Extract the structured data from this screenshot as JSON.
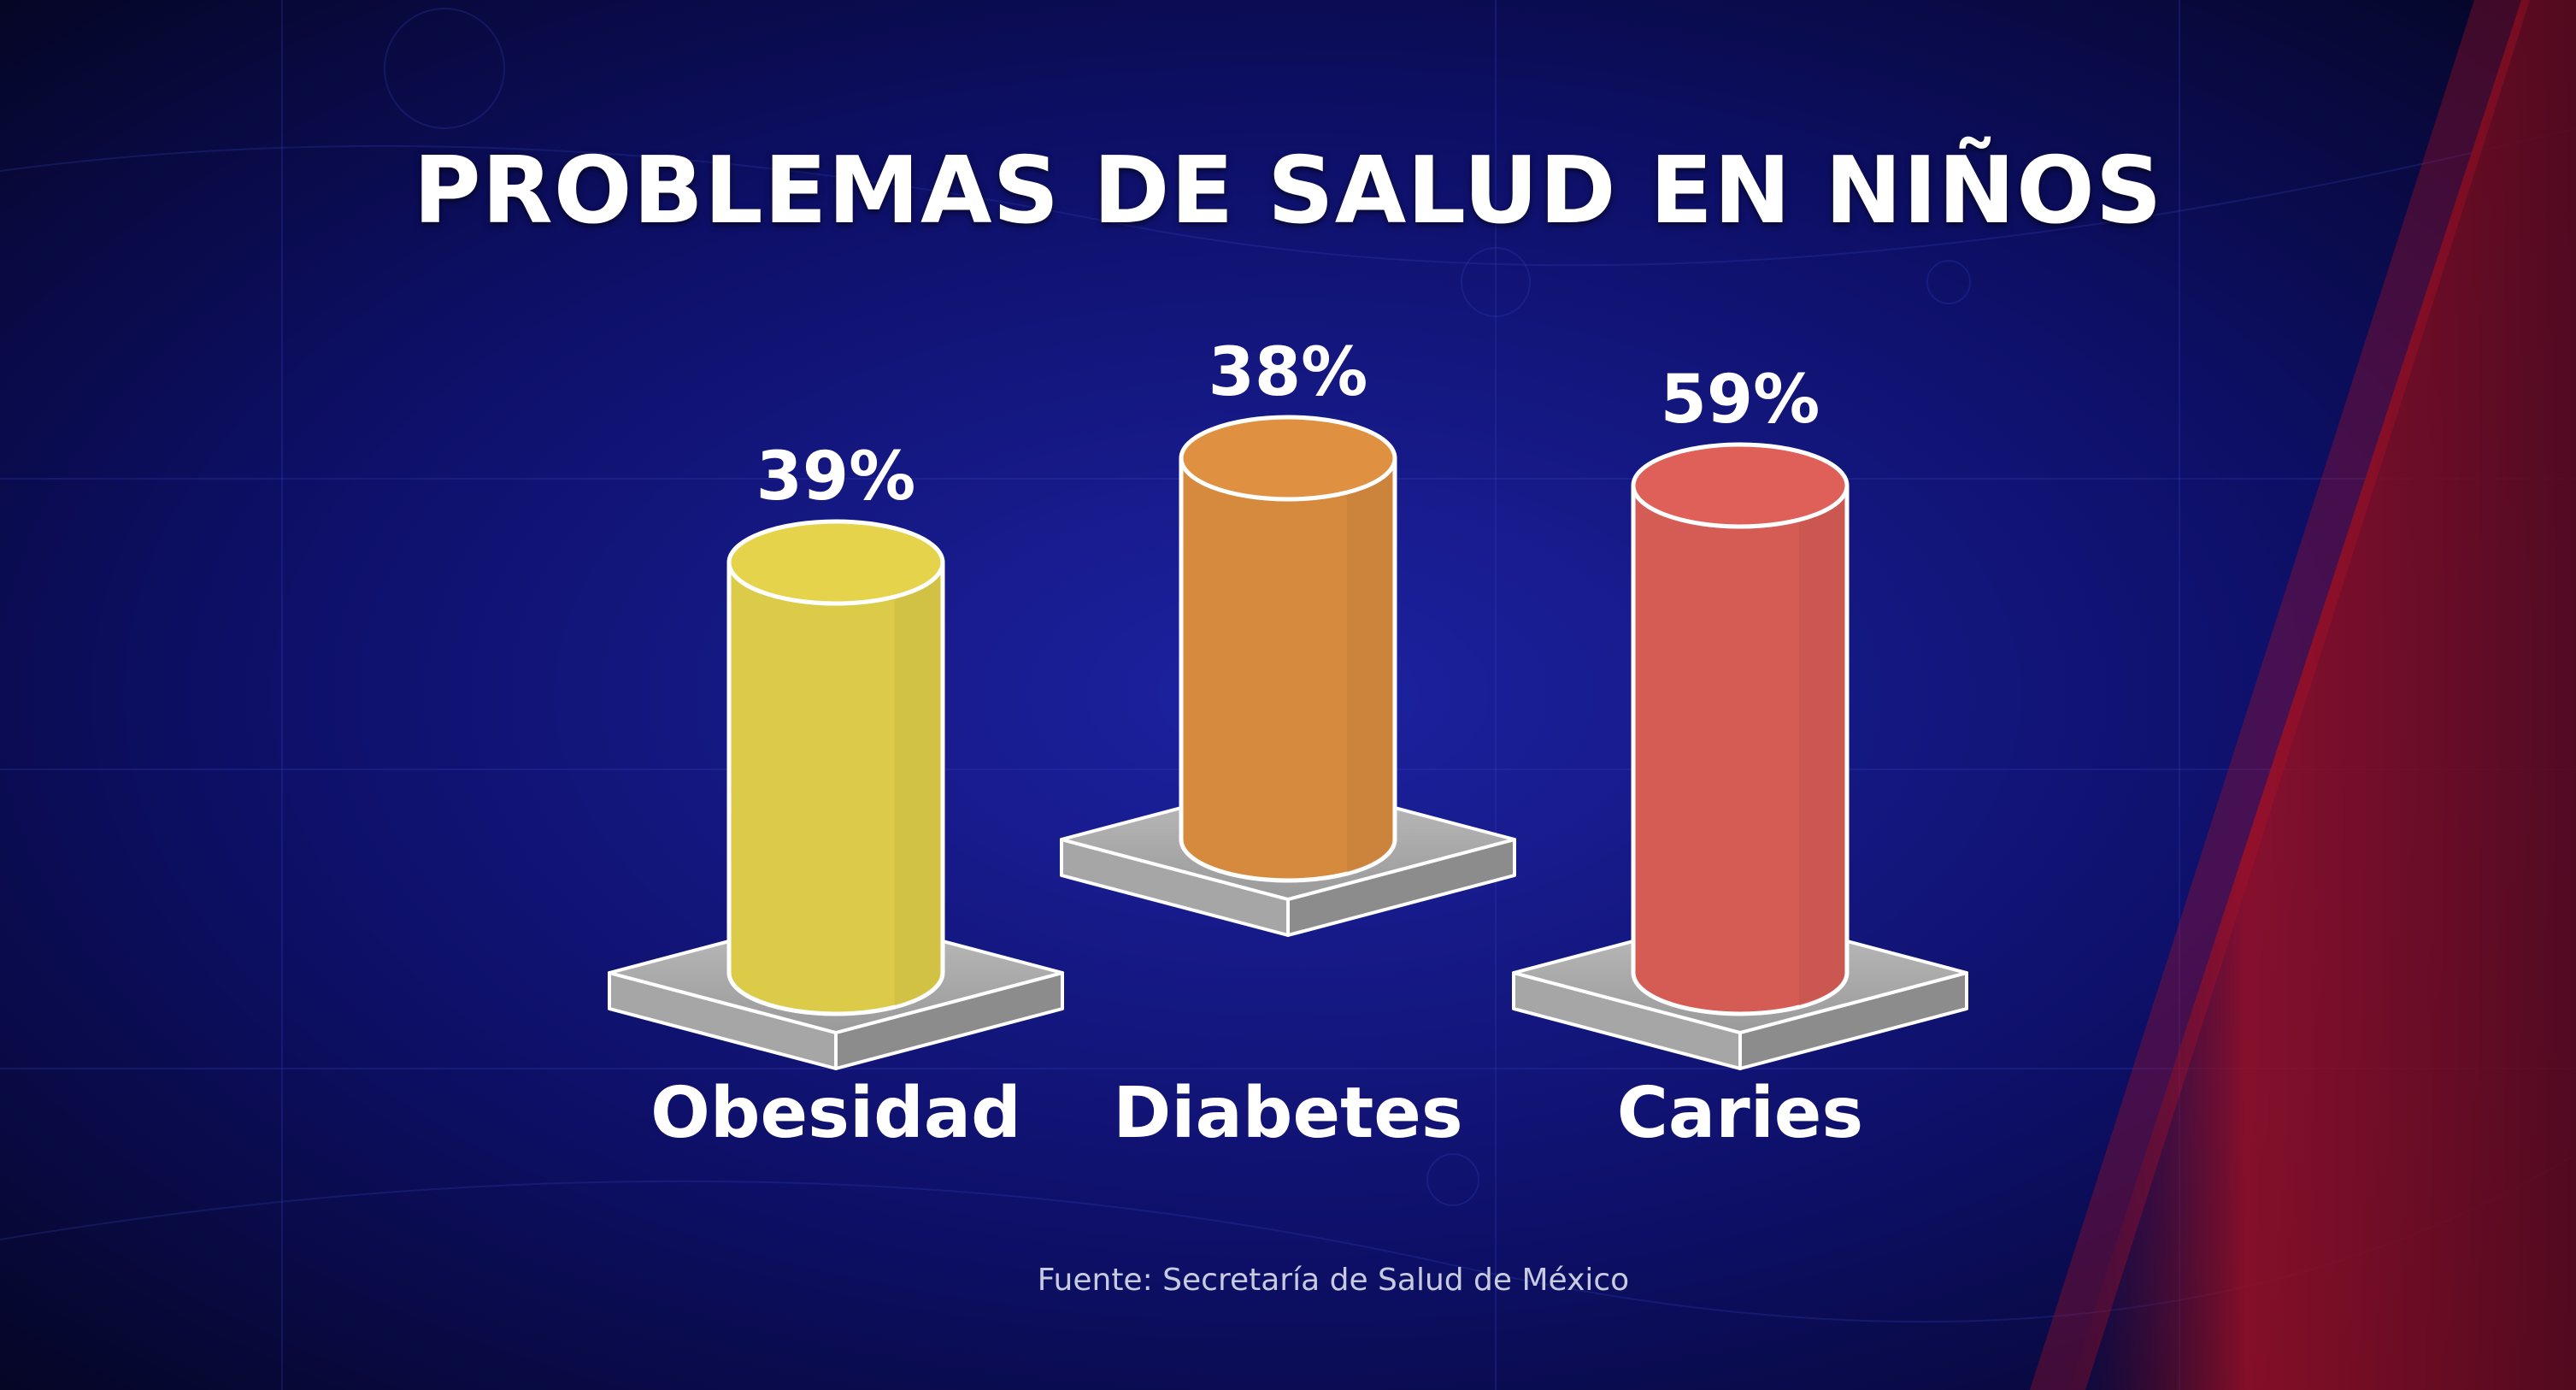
{
  "chart_data": {
    "type": "bar",
    "title": "PROBLEMAS DE SALUD EN NIÑOS",
    "categories": [
      "Obesidad",
      "Diabetes",
      "Caries"
    ],
    "values": [
      39,
      38,
      59
    ],
    "value_labels": [
      "39%",
      "38%",
      "59%"
    ],
    "unit": "%",
    "ylim": [
      0,
      100
    ],
    "bar_style": "3d-cylinder-on-pedestal",
    "grid": false,
    "legend": "none",
    "colors": [
      "#dccb48",
      "#d68a3e",
      "#d55c55"
    ]
  },
  "source": "Fuente: Secretaría de Salud de México",
  "background": {
    "base_color": "#06062a",
    "grid_color": "#2a3aa8",
    "accent_stripe_color": "#b01226"
  }
}
